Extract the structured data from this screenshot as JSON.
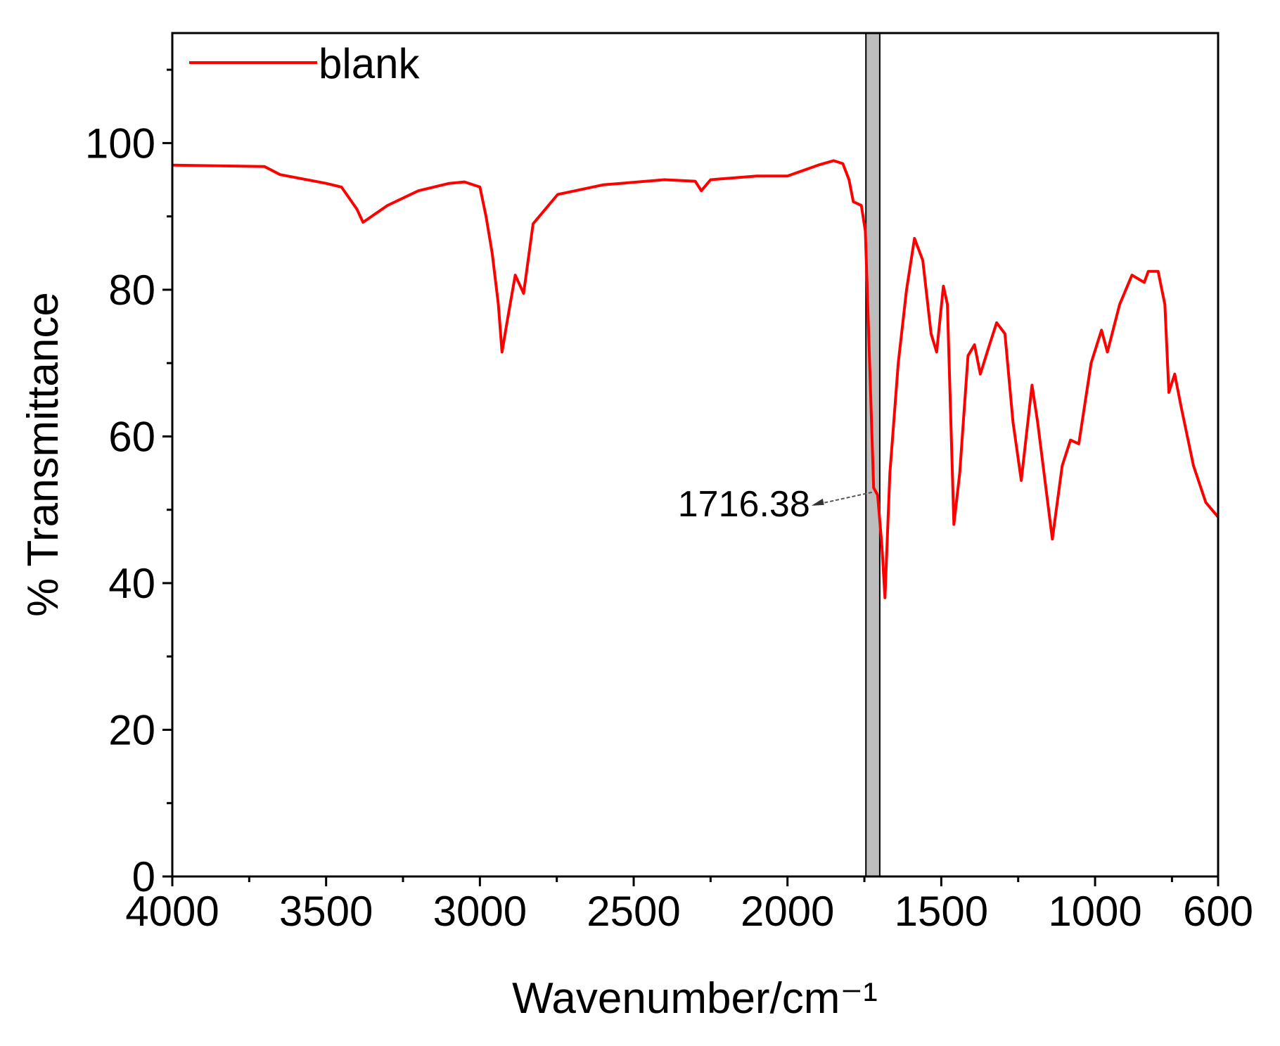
{
  "chart_data": {
    "type": "line",
    "xlabel": "Wavenumber/cm⁻¹",
    "ylabel": "% Transmittance",
    "xlim": [
      4000,
      600
    ],
    "ylim": [
      0,
      115
    ],
    "xticks": [
      4000,
      3500,
      3000,
      2500,
      2000,
      1500,
      1000,
      600
    ],
    "yticks": [
      0,
      20,
      40,
      60,
      80,
      100
    ],
    "legend": "top-left",
    "highlight_band": [
      1745,
      1700
    ],
    "band_color": "#bdbdbd",
    "annotation": {
      "label": "1716.38",
      "x": 1716.38,
      "y": 52
    },
    "x": [
      4000,
      3700,
      3650,
      3500,
      3450,
      3400,
      3380,
      3300,
      3200,
      3100,
      3050,
      3000,
      2980,
      2960,
      2940,
      2928,
      2910,
      2885,
      2858,
      2827,
      2747,
      2600,
      2400,
      2300,
      2280,
      2250,
      2100,
      2000,
      1900,
      1850,
      1820,
      1800,
      1786,
      1760,
      1747,
      1733,
      1720,
      1707,
      1693,
      1683,
      1667,
      1640,
      1613,
      1587,
      1560,
      1533,
      1515,
      1493,
      1480,
      1459,
      1440,
      1413,
      1392,
      1373,
      1347,
      1320,
      1293,
      1267,
      1240,
      1205,
      1187,
      1139,
      1107,
      1080,
      1053,
      1013,
      979,
      960,
      920,
      880,
      840,
      827,
      795,
      773,
      760,
      741,
      720,
      680,
      640,
      600
    ],
    "series": [
      {
        "name": "blank",
        "color": "#ff0000",
        "values": [
          97,
          96.8,
          95.7,
          94.5,
          94,
          91,
          89.2,
          91.5,
          93.5,
          94.5,
          94.7,
          94,
          90,
          85,
          78,
          71.5,
          76,
          82,
          79.5,
          89,
          93,
          94.3,
          95,
          94.8,
          93.5,
          95,
          95.5,
          95.5,
          97,
          97.6,
          97.2,
          95,
          92,
          91.5,
          88,
          70,
          53,
          52,
          45,
          38,
          55,
          70,
          80,
          87,
          84,
          74,
          71.5,
          80.5,
          78,
          48,
          55,
          71,
          72.5,
          68.5,
          72,
          75.5,
          74,
          62,
          54,
          67,
          62,
          46,
          56,
          59.5,
          59,
          70,
          74.5,
          71.5,
          78,
          82,
          81,
          82.5,
          82.5,
          78,
          66,
          68.5,
          64,
          56,
          51,
          49
        ]
      }
    ]
  }
}
